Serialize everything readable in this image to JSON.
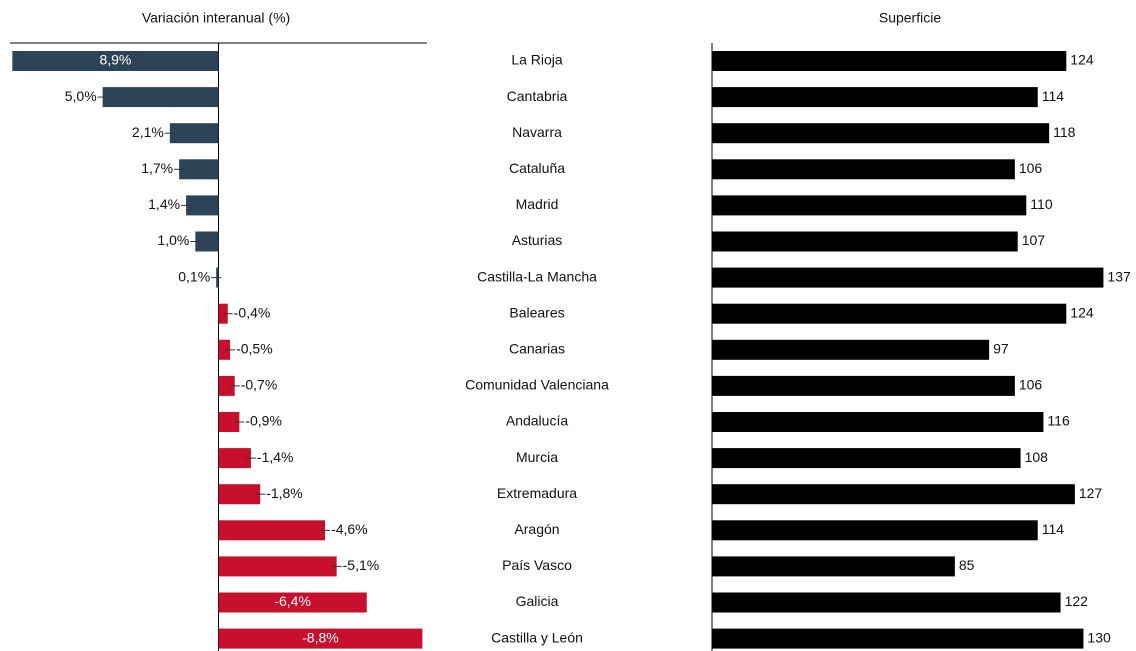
{
  "categories": [
    "La Rioja",
    "Cantabria",
    "Navarra",
    "Cataluña",
    "Madrid",
    "Asturias",
    "Castilla-La Mancha",
    "Baleares",
    "Canarias",
    "Comunidad Valenciana",
    "Andalucía",
    "Murcia",
    "Extremadura",
    "Aragón",
    "País Vasco",
    "Galicia",
    "Castilla y León"
  ],
  "chart_data": [
    {
      "type": "bar",
      "orientation": "horizontal",
      "title": "Variación interanual (%)",
      "values": [
        8.9,
        5.0,
        2.1,
        1.7,
        1.4,
        1.0,
        0.1,
        -0.4,
        -0.5,
        -0.7,
        -0.9,
        -1.4,
        -1.8,
        -4.6,
        -5.1,
        -6.4,
        -8.8
      ],
      "value_labels": [
        "8,9%",
        "5,0%",
        "2,1%",
        "1,7%",
        "1,4%",
        "1,0%",
        "0,1%",
        "-0,4%",
        "-0,5%",
        "-0,7%",
        "-0,9%",
        "-1,4%",
        "-1,8%",
        "-4,6%",
        "-5,1%",
        "-6,4%",
        "-8,8%"
      ],
      "xlim": [
        9,
        -9
      ],
      "positive_color": "#2d4357",
      "negative_color": "#c8102e"
    },
    {
      "type": "bar",
      "orientation": "horizontal",
      "title": "Superficie",
      "values": [
        124,
        114,
        118,
        106,
        110,
        107,
        137,
        124,
        97,
        106,
        116,
        108,
        127,
        114,
        85,
        122,
        130
      ],
      "xlim": [
        0,
        140
      ],
      "color": "#000000"
    }
  ]
}
